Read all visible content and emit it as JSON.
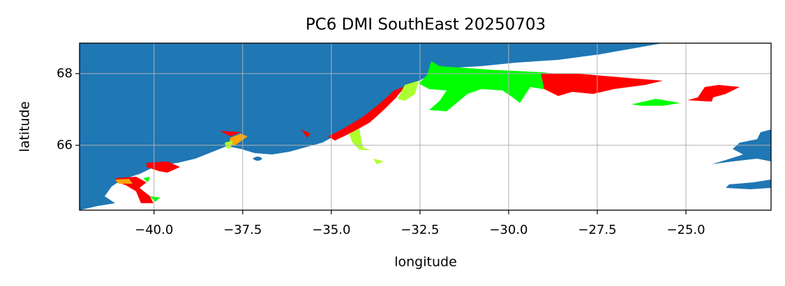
{
  "chart_data": {
    "type": "map",
    "title": "PC6 DMI SouthEast 20250703",
    "xlabel": "longitude",
    "ylabel": "latitude",
    "xlim": [
      -42.1,
      -22.6
    ],
    "ylim": [
      64.19,
      68.85
    ],
    "xticks": [
      {
        "value": -40.0,
        "label": "−40.0"
      },
      {
        "value": -37.5,
        "label": "−37.5"
      },
      {
        "value": -35.0,
        "label": "−35.0"
      },
      {
        "value": -32.5,
        "label": "−32.5"
      },
      {
        "value": -30.0,
        "label": "−30.0"
      },
      {
        "value": -27.5,
        "label": "−27.5"
      },
      {
        "value": -25.0,
        "label": "−25.0"
      }
    ],
    "yticks": [
      66,
      68
    ],
    "grid": true
  }
}
